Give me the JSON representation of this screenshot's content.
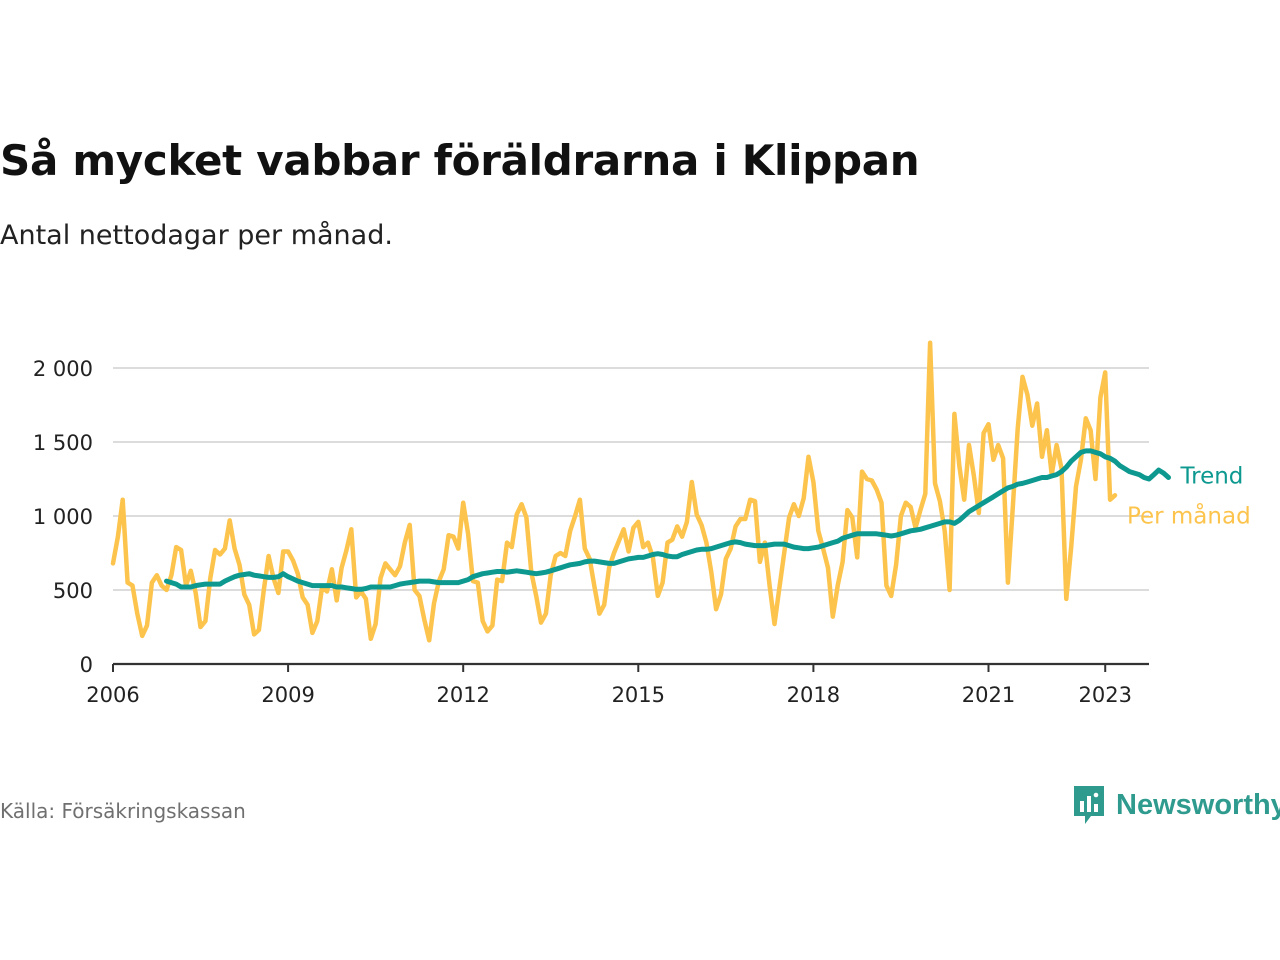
{
  "title": "Så mycket vabbar föräldrarna i Klippan",
  "subtitle": "Antal nettodagar per månad.",
  "source": "Källa: Försäkringskassan",
  "brand": "Newsworthy",
  "icons": {
    "brand_logo": "newsworthy-logo-icon"
  },
  "colors": {
    "per_month": "#fcc44d",
    "trend": "#0e9990",
    "grid": "#dcdcdc",
    "axis": "#333333",
    "brand": "#2f9b8e",
    "source_text": "#707070"
  },
  "chart_data": {
    "type": "line",
    "ylim": [
      0,
      2000
    ],
    "yticks": [
      0,
      500,
      1000,
      1500,
      2000
    ],
    "ytick_labels": [
      "0",
      "500",
      "1 000",
      "1 500",
      "2 000"
    ],
    "xlim": [
      2006.0,
      2023.75
    ],
    "xticks": [
      2006,
      2009,
      2012,
      2015,
      2018,
      2021,
      2023
    ],
    "xtick_labels": [
      "2006",
      "2009",
      "2012",
      "2015",
      "2018",
      "2021",
      "2023"
    ],
    "grid": true,
    "legend_placement": "right-end-of-lines",
    "series": [
      {
        "name": "Per månad",
        "start": "2006-01",
        "values": [
          680,
          860,
          1110,
          550,
          530,
          340,
          190,
          260,
          550,
          600,
          530,
          500,
          600,
          790,
          770,
          530,
          630,
          480,
          250,
          290,
          580,
          770,
          740,
          780,
          970,
          780,
          670,
          470,
          400,
          200,
          230,
          500,
          730,
          580,
          480,
          760,
          760,
          700,
          610,
          450,
          400,
          210,
          290,
          520,
          490,
          640,
          430,
          650,
          770,
          910,
          450,
          490,
          440,
          170,
          270,
          580,
          680,
          640,
          600,
          660,
          820,
          940,
          500,
          460,
          300,
          160,
          410,
          560,
          640,
          870,
          860,
          780,
          1090,
          880,
          560,
          550,
          290,
          220,
          260,
          570,
          560,
          820,
          790,
          1010,
          1080,
          990,
          620,
          460,
          280,
          340,
          600,
          730,
          750,
          730,
          900,
          1000,
          1110,
          780,
          710,
          520,
          340,
          400,
          650,
          750,
          830,
          910,
          760,
          920,
          960,
          790,
          820,
          720,
          460,
          550,
          820,
          840,
          930,
          860,
          960,
          1230,
          1010,
          940,
          820,
          620,
          370,
          470,
          710,
          780,
          930,
          980,
          980,
          1110,
          1100,
          690,
          820,
          530,
          270,
          510,
          750,
          990,
          1080,
          1000,
          1120,
          1400,
          1230,
          900,
          780,
          650,
          320,
          530,
          690,
          1040,
          990,
          720,
          1300,
          1250,
          1240,
          1180,
          1090,
          530,
          460,
          670,
          1000,
          1090,
          1060,
          920,
          1040,
          1150,
          2170,
          1220,
          1100,
          900,
          500,
          1690,
          1340,
          1110,
          1480,
          1270,
          1020,
          1560,
          1620,
          1380,
          1480,
          1390,
          550,
          1060,
          1590,
          1940,
          1820,
          1610,
          1760,
          1400,
          1580,
          1280,
          1480,
          1320,
          440,
          790,
          1200,
          1380,
          1660,
          1580,
          1250,
          1800,
          1970,
          1110,
          1140
        ]
      },
      {
        "name": "Trend",
        "start": "2006-12",
        "values": [
          560,
          550,
          540,
          520,
          520,
          520,
          530,
          535,
          540,
          540,
          540,
          540,
          560,
          575,
          590,
          600,
          605,
          610,
          600,
          595,
          590,
          585,
          585,
          590,
          610,
          590,
          575,
          560,
          550,
          540,
          530,
          530,
          530,
          530,
          530,
          520,
          520,
          515,
          510,
          505,
          505,
          510,
          520,
          520,
          520,
          520,
          520,
          530,
          540,
          545,
          550,
          555,
          560,
          560,
          560,
          555,
          550,
          550,
          550,
          550,
          550,
          560,
          570,
          590,
          600,
          610,
          615,
          620,
          625,
          625,
          620,
          625,
          630,
          625,
          620,
          615,
          610,
          615,
          620,
          630,
          640,
          650,
          660,
          670,
          675,
          680,
          690,
          695,
          695,
          690,
          685,
          680,
          680,
          690,
          700,
          710,
          715,
          720,
          720,
          730,
          740,
          745,
          740,
          730,
          725,
          725,
          740,
          750,
          760,
          770,
          775,
          775,
          780,
          790,
          800,
          810,
          820,
          825,
          820,
          810,
          805,
          800,
          800,
          800,
          805,
          810,
          810,
          810,
          800,
          790,
          785,
          780,
          780,
          785,
          790,
          800,
          810,
          820,
          830,
          850,
          860,
          870,
          880,
          880,
          880,
          880,
          880,
          875,
          870,
          865,
          870,
          880,
          890,
          900,
          905,
          910,
          920,
          930,
          940,
          950,
          960,
          960,
          950,
          970,
          1000,
          1030,
          1050,
          1070,
          1090,
          1110,
          1130,
          1150,
          1170,
          1190,
          1200,
          1215,
          1220,
          1230,
          1240,
          1250,
          1260,
          1260,
          1270,
          1280,
          1300,
          1330,
          1370,
          1400,
          1430,
          1440,
          1440,
          1430,
          1420,
          1400,
          1390,
          1370,
          1340,
          1320,
          1300,
          1290,
          1280,
          1260,
          1250,
          1280,
          1310,
          1290,
          1260
        ]
      }
    ]
  }
}
